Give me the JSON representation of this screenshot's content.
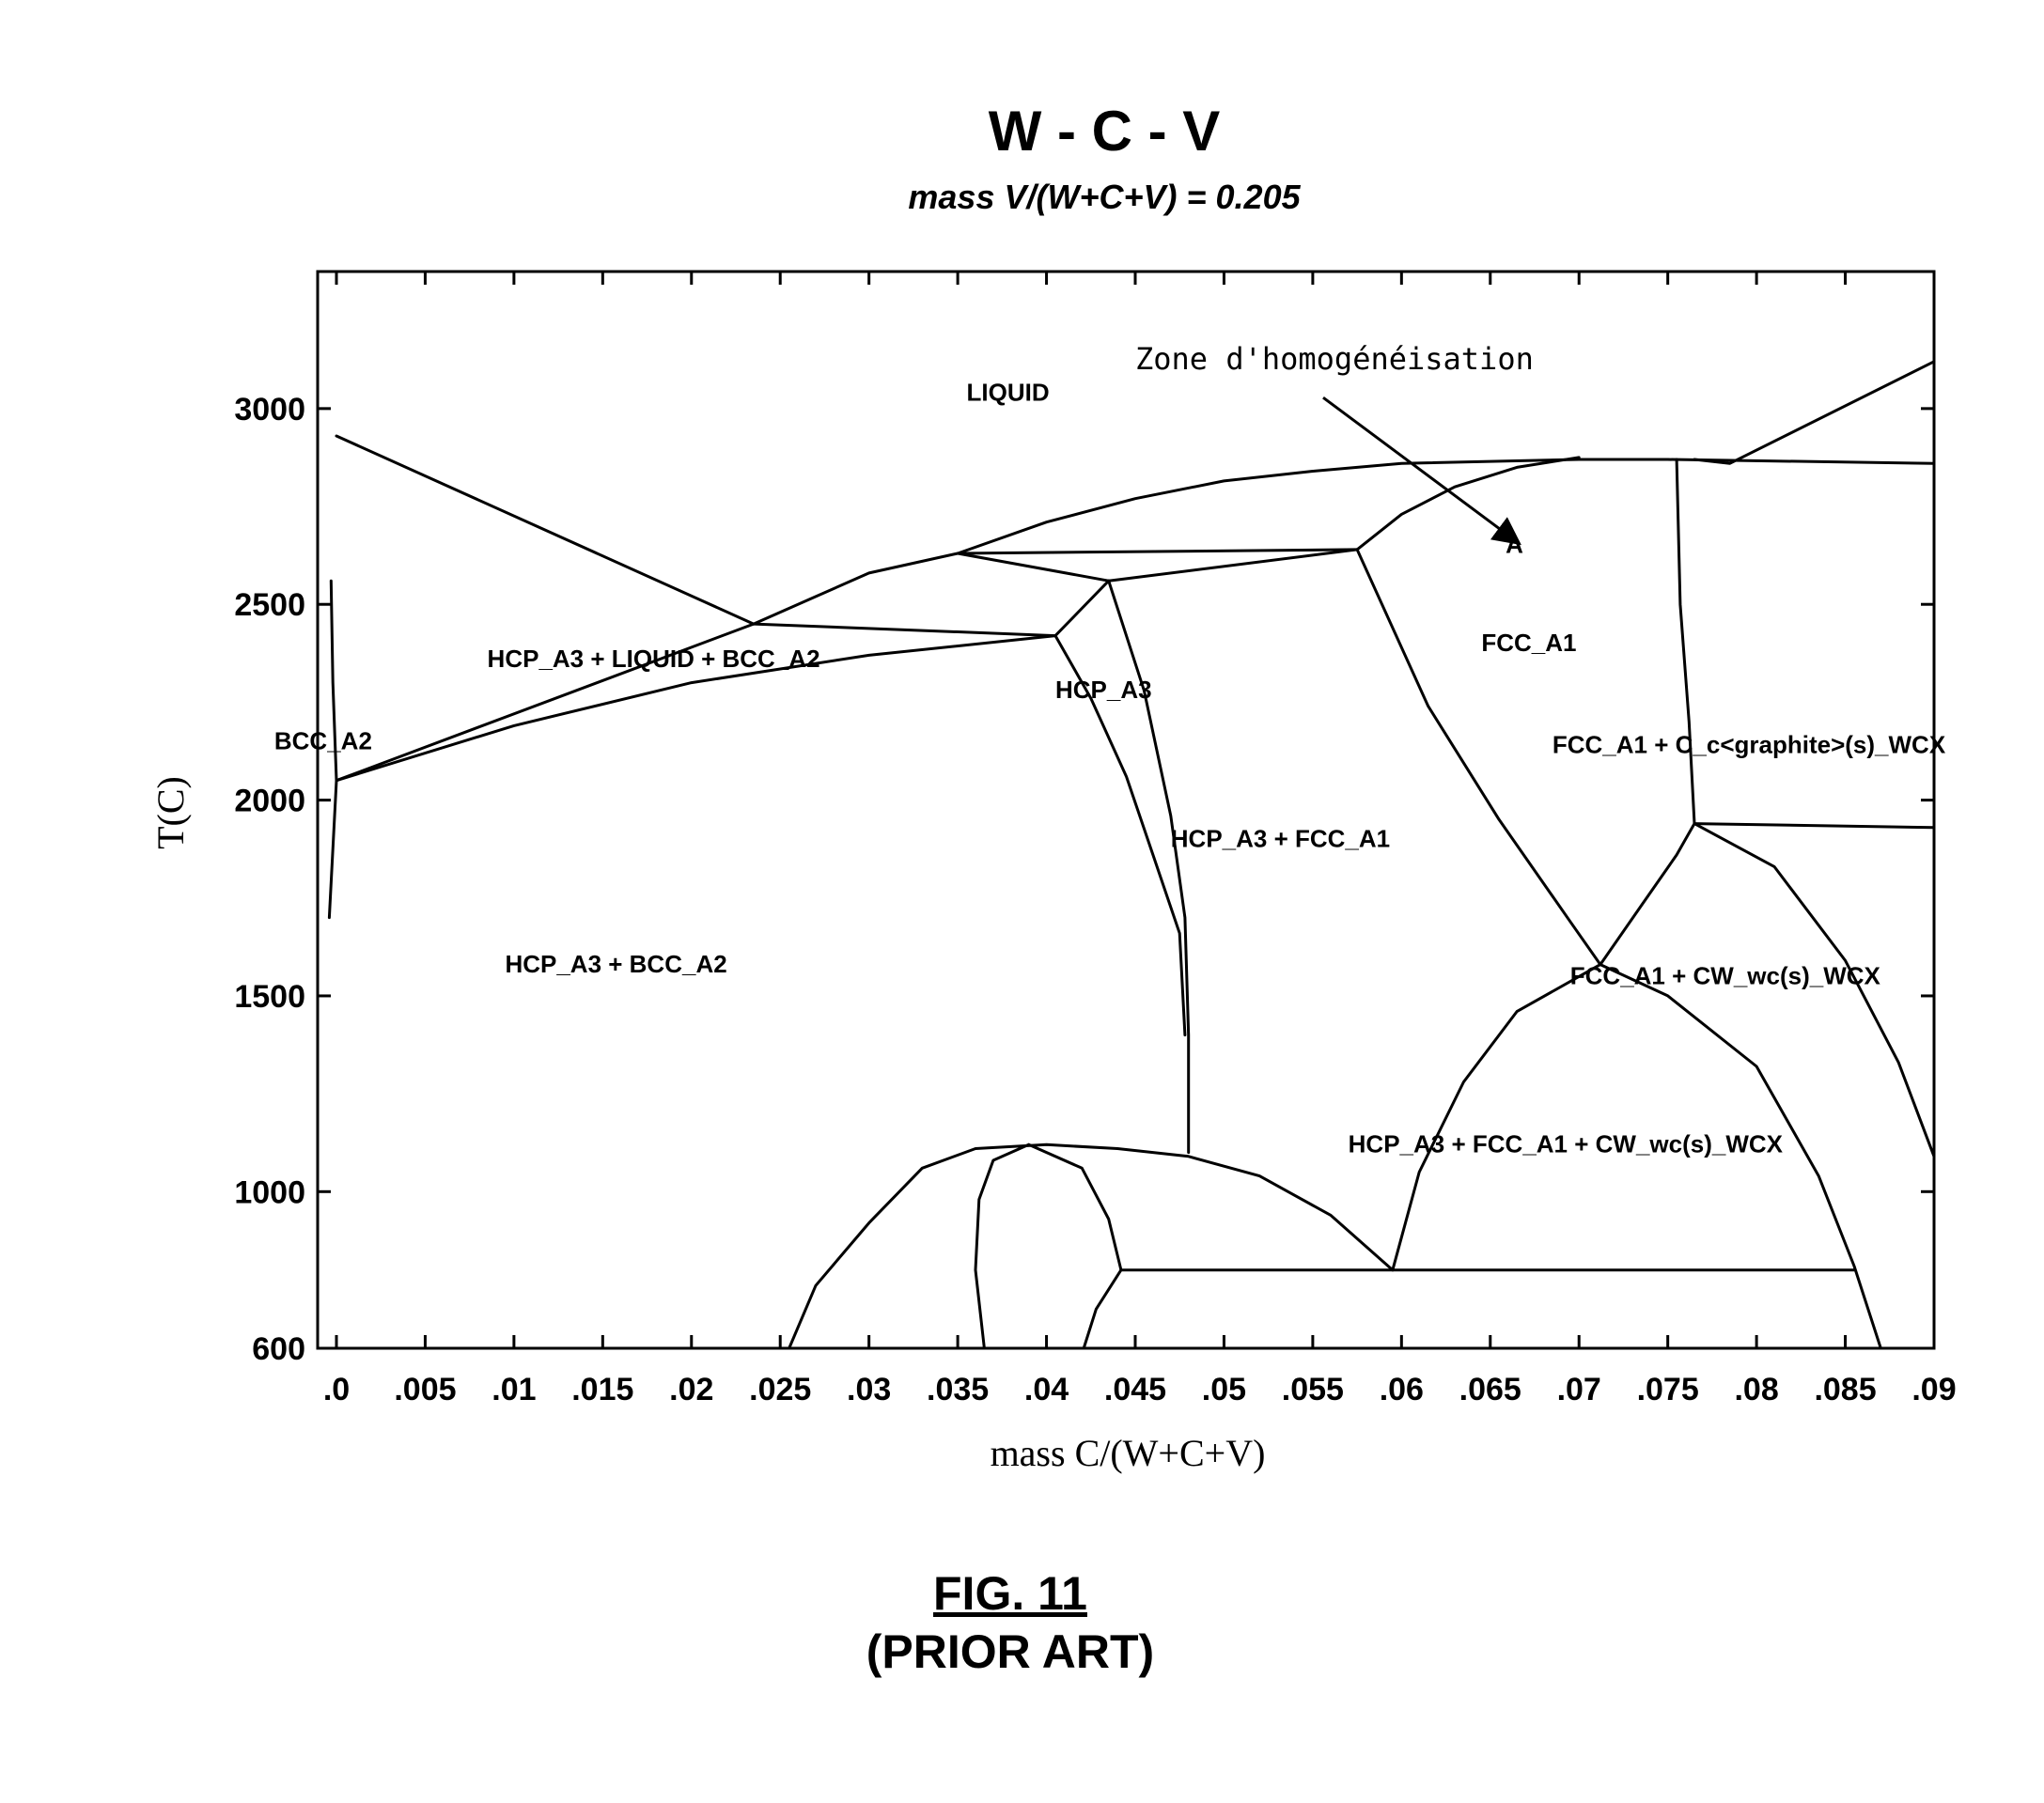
{
  "chart_data": {
    "type": "line",
    "title": "W - C - V",
    "subtitle": "mass V/(W+C+V) = 0.205",
    "xlabel": "mass C/(W+C+V)",
    "ylabel": "T(C)",
    "xlim": [
      0,
      0.09
    ],
    "ylim": [
      600,
      3350
    ],
    "x_ticks": [
      ".0",
      ".005",
      ".01",
      ".015",
      ".02",
      ".025",
      ".03",
      ".035",
      ".04",
      ".045",
      ".05",
      ".055",
      ".06",
      ".065",
      ".07",
      ".075",
      ".08",
      ".085",
      ".09"
    ],
    "y_ticks": [
      "600",
      "1000",
      "1500",
      "2000",
      "2500",
      "3000"
    ],
    "grid": false,
    "regions": [
      {
        "label": "LIQUID",
        "x": 0.0355,
        "y": 3020
      },
      {
        "label": "HCP_A3 + LIQUID + BCC_A2",
        "x": 0.0085,
        "y": 2340
      },
      {
        "label": "BCC_A2",
        "x": -0.0035,
        "y": 2130
      },
      {
        "label": "HCP_A3",
        "x": 0.0405,
        "y": 2260
      },
      {
        "label": "HCP_A3 + FCC_A1",
        "x": 0.047,
        "y": 1880
      },
      {
        "label": "HCP_A3 + BCC_A2",
        "x": 0.0095,
        "y": 1560
      },
      {
        "label": "FCC_A1",
        "x": 0.0645,
        "y": 2380
      },
      {
        "label": "FCC_A1 + C_c<graphite>(s)_WCX",
        "x": 0.0685,
        "y": 2120
      },
      {
        "label": "FCC_A1 + CW_wc(s)_WCX",
        "x": 0.0695,
        "y": 1530
      },
      {
        "label": "HCP_A3 + FCC_A1 + CW_wc(s)_WCX",
        "x": 0.057,
        "y": 1100
      }
    ],
    "annotations": [
      {
        "label": "Zone d'homogénéisation",
        "x": 0.045,
        "y": 3100,
        "arrow_to": [
          0.0665,
          2660
        ]
      },
      {
        "label": "A",
        "x": 0.0665,
        "y": 2660
      }
    ],
    "series": [
      {
        "values": [
          [
            0,
            2930
          ],
          [
            0.0235,
            2450
          ]
        ]
      },
      {
        "values": [
          [
            0.0235,
            2450
          ],
          [
            0.03,
            2580
          ],
          [
            0.035,
            2630
          ],
          [
            0.04,
            2710
          ],
          [
            0.045,
            2770
          ],
          [
            0.05,
            2815
          ],
          [
            0.055,
            2840
          ],
          [
            0.06,
            2860
          ],
          [
            0.07,
            2870
          ],
          [
            0.075,
            2870
          ],
          [
            0.09,
            2860
          ]
        ]
      },
      {
        "values": [
          [
            0.0765,
            2870
          ],
          [
            0.0785,
            2860
          ],
          [
            0.09,
            3120
          ]
        ]
      },
      {
        "values": [
          [
            0.0235,
            2450
          ],
          [
            0.0405,
            2420
          ]
        ]
      },
      {
        "values": [
          [
            0,
            2050
          ],
          [
            0.0235,
            2450
          ]
        ]
      },
      {
        "values": [
          [
            0,
            2050
          ],
          [
            0.01,
            2190
          ],
          [
            0.02,
            2300
          ],
          [
            0.03,
            2370
          ],
          [
            0.0405,
            2420
          ]
        ]
      },
      {
        "values": [
          [
            0.0405,
            2420
          ],
          [
            0.0435,
            2560
          ]
        ]
      },
      {
        "values": [
          [
            0.035,
            2630
          ],
          [
            0.0435,
            2560
          ]
        ]
      },
      {
        "values": [
          [
            0.035,
            2630
          ],
          [
            0.0575,
            2640
          ]
        ]
      },
      {
        "values": [
          [
            0.0435,
            2560
          ],
          [
            0.0575,
            2640
          ]
        ]
      },
      {
        "values": [
          [
            0.0575,
            2640
          ],
          [
            0.06,
            2730
          ],
          [
            0.063,
            2800
          ],
          [
            0.0665,
            2850
          ],
          [
            0.07,
            2875
          ]
        ]
      },
      {
        "values": [
          [
            0.0405,
            2420
          ],
          [
            0.0425,
            2260
          ],
          [
            0.0445,
            2060
          ],
          [
            0.046,
            1860
          ],
          [
            0.0475,
            1660
          ],
          [
            0.0478,
            1400
          ]
        ]
      },
      {
        "values": [
          [
            0.0435,
            2560
          ],
          [
            0.0455,
            2280
          ],
          [
            0.047,
            1960
          ],
          [
            0.0478,
            1700
          ],
          [
            0.048,
            1400
          ],
          [
            0.048,
            1100
          ]
        ]
      },
      {
        "values": [
          [
            0.0575,
            2640
          ],
          [
            0.0615,
            2240
          ],
          [
            0.0655,
            1950
          ],
          [
            0.0695,
            1690
          ],
          [
            0.0712,
            1580
          ]
        ]
      },
      {
        "values": [
          [
            0.0712,
            1580
          ],
          [
            0.0735,
            1730
          ],
          [
            0.0755,
            1860
          ],
          [
            0.0765,
            1940
          ]
        ]
      },
      {
        "values": [
          [
            0.0755,
            2870
          ],
          [
            0.0757,
            2500
          ],
          [
            0.0762,
            2200
          ],
          [
            0.0765,
            1940
          ]
        ]
      },
      {
        "values": [
          [
            0.0765,
            1940
          ],
          [
            0.09,
            1930
          ]
        ]
      },
      {
        "values": [
          [
            0.0765,
            1940
          ],
          [
            0.081,
            1830
          ],
          [
            0.085,
            1590
          ],
          [
            0.088,
            1330
          ],
          [
            0.09,
            1090
          ]
        ]
      },
      {
        "values": [
          [
            0.0595,
            800
          ],
          [
            0.061,
            1050
          ],
          [
            0.0635,
            1280
          ],
          [
            0.0665,
            1460
          ],
          [
            0.0712,
            1580
          ],
          [
            0.075,
            1500
          ],
          [
            0.08,
            1320
          ],
          [
            0.0835,
            1040
          ],
          [
            0.0855,
            810
          ],
          [
            0.087,
            600
          ]
        ]
      },
      {
        "values": [
          [
            0.0255,
            600
          ],
          [
            0.027,
            760
          ],
          [
            0.03,
            920
          ],
          [
            0.033,
            1060
          ],
          [
            0.036,
            1110
          ],
          [
            0.04,
            1120
          ],
          [
            0.044,
            1110
          ],
          [
            0.048,
            1090
          ],
          [
            0.052,
            1040
          ],
          [
            0.056,
            940
          ],
          [
            0.0595,
            800
          ]
        ]
      },
      {
        "values": [
          [
            0.0365,
            600
          ],
          [
            0.036,
            800
          ],
          [
            0.0362,
            980
          ],
          [
            0.037,
            1080
          ],
          [
            0.039,
            1120
          ]
        ]
      },
      {
        "values": [
          [
            0.039,
            1120
          ],
          [
            0.042,
            1060
          ],
          [
            0.0435,
            930
          ],
          [
            0.0442,
            800
          ]
        ]
      },
      {
        "values": [
          [
            0.0442,
            800
          ],
          [
            0.0428,
            700
          ],
          [
            0.0421,
            600
          ]
        ]
      },
      {
        "values": [
          [
            0.0442,
            800
          ],
          [
            0.0855,
            800
          ]
        ]
      },
      {
        "values": [
          [
            -0.0003,
            2560
          ],
          [
            -0.0002,
            2300
          ],
          [
            0,
            2050
          ],
          [
            -0.0004,
            1700
          ]
        ]
      }
    ]
  },
  "caption": {
    "figure": "FIG. 11",
    "note": "(PRIOR ART)"
  }
}
